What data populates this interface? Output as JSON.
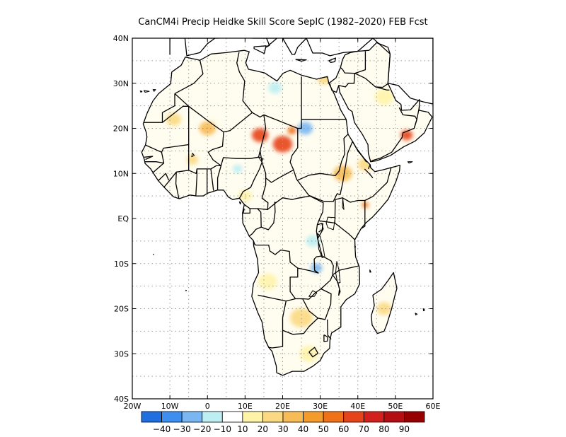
{
  "title": "CanCM4i Precip Heidke Skill Score SepIC (1982–2020) FEB Fcst",
  "map": {
    "lon_range": [
      -20,
      60
    ],
    "lat_range": [
      -40,
      40
    ],
    "lat_ticks": [
      {
        "value": 40,
        "label": "40N"
      },
      {
        "value": 30,
        "label": "30N"
      },
      {
        "value": 20,
        "label": "20N"
      },
      {
        "value": 10,
        "label": "10N"
      },
      {
        "value": 0,
        "label": "EQ"
      },
      {
        "value": -10,
        "label": "10S"
      },
      {
        "value": -20,
        "label": "20S"
      },
      {
        "value": -30,
        "label": "30S"
      },
      {
        "value": -40,
        "label": "40S"
      }
    ],
    "lon_ticks": [
      {
        "value": -20,
        "label": "20W"
      },
      {
        "value": -10,
        "label": "10W"
      },
      {
        "value": 0,
        "label": "0"
      },
      {
        "value": 10,
        "label": "10E"
      },
      {
        "value": 20,
        "label": "20E"
      },
      {
        "value": 30,
        "label": "30E"
      },
      {
        "value": 40,
        "label": "40E"
      },
      {
        "value": 50,
        "label": "50E"
      },
      {
        "value": 60,
        "label": "60E"
      }
    ],
    "grid": true
  },
  "colorbar": {
    "colors": [
      "#1f6fe0",
      "#3d8ef0",
      "#7ab7f2",
      "#bdeef2",
      "#ffffff",
      "#fff3a8",
      "#fbd982",
      "#f7bc56",
      "#f59b2c",
      "#f07118",
      "#e5441b",
      "#d2201d",
      "#b30e12",
      "#960000"
    ],
    "labels": [
      "-40",
      "-30",
      "-20",
      "-10",
      "10",
      "20",
      "30",
      "40",
      "50",
      "60",
      "70",
      "80",
      "90"
    ]
  },
  "patches": [
    {
      "lon": 14,
      "lat": 18.5,
      "r": 2.2,
      "level": 10
    },
    {
      "lon": 20,
      "lat": 16.5,
      "r": 2.6,
      "level": 10
    },
    {
      "lon": 22.5,
      "lat": 19.5,
      "r": 1.2,
      "level": 9
    },
    {
      "lon": 53,
      "lat": 18.5,
      "r": 1.6,
      "level": 10
    },
    {
      "lon": 42,
      "lat": 3,
      "r": 0.9,
      "level": 9
    },
    {
      "lon": 0,
      "lat": 20,
      "r": 2.2,
      "level": 7
    },
    {
      "lon": -9,
      "lat": 22,
      "r": 2.0,
      "level": 6
    },
    {
      "lon": 36,
      "lat": 10,
      "r": 2.5,
      "level": 7
    },
    {
      "lon": 42,
      "lat": 12,
      "r": 2.0,
      "level": 6
    },
    {
      "lon": 31,
      "lat": 31,
      "r": 1.8,
      "level": 6
    },
    {
      "lon": 47,
      "lat": 27,
      "r": 2.5,
      "level": 5
    },
    {
      "lon": 25,
      "lat": -22,
      "r": 3.0,
      "level": 6
    },
    {
      "lon": 16,
      "lat": -14,
      "r": 2.5,
      "level": 5
    },
    {
      "lon": 27,
      "lat": -30,
      "r": 2.5,
      "level": 5
    },
    {
      "lon": 47,
      "lat": -20,
      "r": 2.0,
      "level": 6
    },
    {
      "lon": 26,
      "lat": 20,
      "r": 2.0,
      "level": 2
    },
    {
      "lon": 28,
      "lat": -5,
      "r": 1.8,
      "level": 3
    },
    {
      "lon": 29,
      "lat": -11,
      "r": 1.5,
      "level": 2
    },
    {
      "lon": 8,
      "lat": 11,
      "r": 1.3,
      "level": 3
    },
    {
      "lon": 18,
      "lat": 29,
      "r": 1.8,
      "level": 3
    },
    {
      "lon": -4,
      "lat": 13,
      "r": 1.5,
      "level": 6
    },
    {
      "lon": 10,
      "lat": 5,
      "r": 1.8,
      "level": 5
    }
  ]
}
